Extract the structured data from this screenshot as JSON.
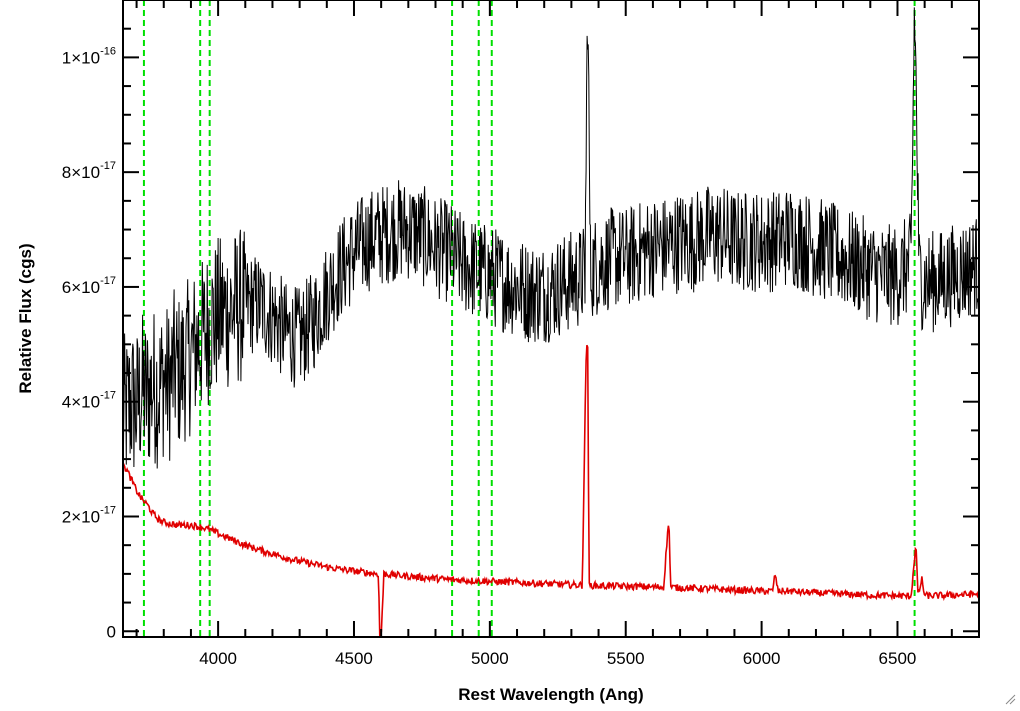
{
  "chart_data": {
    "type": "line",
    "title": "",
    "xlabel": "Rest Wavelength (Ang)",
    "ylabel": "Relative Flux (cgs)",
    "xlim": [
      3650,
      6800
    ],
    "ylim": [
      -1e-18,
      1.1e-16
    ],
    "grid": false,
    "x_ticks": [
      4000,
      4500,
      5000,
      5500,
      6000,
      6500
    ],
    "x_tick_labels": [
      "4000",
      "4500",
      "5000",
      "5500",
      "6000",
      "6500"
    ],
    "y_ticks": [
      0,
      2e-17,
      4e-17,
      6e-17,
      8e-17,
      1e-16
    ],
    "y_tick_labels": [
      {
        "text": "0",
        "mantissa": "0",
        "times": "",
        "base": "",
        "exponent": ""
      },
      {
        "text": "2×10-17",
        "mantissa": "2",
        "times": "×",
        "base": "10",
        "exponent": "-17"
      },
      {
        "text": "4×10-17",
        "mantissa": "4",
        "times": "×",
        "base": "10",
        "exponent": "-17"
      },
      {
        "text": "6×10-17",
        "mantissa": "6",
        "times": "×",
        "base": "10",
        "exponent": "-17"
      },
      {
        "text": "8×10-17",
        "mantissa": "8",
        "times": "×",
        "base": "10",
        "exponent": "-17"
      },
      {
        "text": "1×10-16",
        "mantissa": "1",
        "times": "×",
        "base": "10",
        "exponent": "-16"
      }
    ],
    "vertical_markers": {
      "color": "#00e000",
      "style": "dashed",
      "x": [
        3727,
        3934,
        3969,
        4861,
        4959,
        5007,
        6563
      ]
    },
    "series": [
      {
        "color": "#000000",
        "description_of_shape": "noisy observed spectrum",
        "x": [
          3660,
          3680,
          3700,
          3720,
          3740,
          3760,
          3780,
          3800,
          3820,
          3840,
          3860,
          3880,
          3900,
          3920,
          3940,
          3960,
          3980,
          4000,
          4050,
          4100,
          4150,
          4200,
          4250,
          4300,
          4350,
          4400,
          4450,
          4500,
          4550,
          4600,
          4650,
          4700,
          4750,
          4800,
          4850,
          4900,
          4950,
          5000,
          5050,
          5100,
          5150,
          5200,
          5250,
          5300,
          5350,
          5360,
          5370,
          5400,
          5450,
          5500,
          5550,
          5600,
          5650,
          5700,
          5750,
          5800,
          5850,
          5900,
          5950,
          6000,
          6050,
          6100,
          6150,
          6200,
          6250,
          6300,
          6350,
          6400,
          6450,
          6500,
          6550,
          6563,
          6580,
          6600,
          6650,
          6700,
          6750,
          6800
        ],
        "y": [
          3.8e-17,
          4e-17,
          3.9e-17,
          4.2e-17,
          4.1e-17,
          4.3e-17,
          4.2e-17,
          4.4e-17,
          4.3e-17,
          4.6e-17,
          4.5e-17,
          4.7e-17,
          4.8e-17,
          5e-17,
          5.1e-17,
          5.3e-17,
          5.4e-17,
          5.5e-17,
          5.6e-17,
          5.7e-17,
          5.7e-17,
          5.5e-17,
          5.2e-17,
          5.1e-17,
          5.4e-17,
          5.9e-17,
          6.3e-17,
          6.6e-17,
          6.8e-17,
          6.9e-17,
          7e-17,
          7e-17,
          6.9e-17,
          6.7e-17,
          6.6e-17,
          6.4e-17,
          6.3e-17,
          6.2e-17,
          6.1e-17,
          6e-17,
          5.9e-17,
          5.9e-17,
          6e-17,
          6.1e-17,
          6.2e-17,
          1.1e-16,
          6.3e-17,
          6.4e-17,
          6.5e-17,
          6.5e-17,
          6.6e-17,
          6.7e-17,
          6.7e-17,
          6.8e-17,
          6.8e-17,
          6.9e-17,
          6.9e-17,
          6.8e-17,
          6.8e-17,
          6.8e-17,
          6.8e-17,
          6.9e-17,
          6.8e-17,
          6.7e-17,
          6.6e-17,
          6.5e-17,
          6.4e-17,
          6.3e-17,
          6.2e-17,
          6.2e-17,
          6.4e-17,
          1.1e-16,
          6.2e-17,
          6.1e-17,
          6.1e-17,
          6.2e-17,
          6.3e-17,
          6.4e-17
        ]
      },
      {
        "color": "#e00000",
        "description_of_shape": "model / continuum spectrum with emission lines",
        "x": [
          3660,
          3680,
          3700,
          3720,
          3740,
          3760,
          3780,
          3800,
          3850,
          3900,
          3950,
          3980,
          4000,
          4050,
          4100,
          4150,
          4200,
          4250,
          4300,
          4350,
          4400,
          4450,
          4500,
          4550,
          4590,
          4595,
          4600,
          4610,
          4650,
          4700,
          4750,
          4800,
          4850,
          4900,
          4950,
          5000,
          5050,
          5100,
          5150,
          5200,
          5250,
          5300,
          5340,
          5355,
          5360,
          5365,
          5380,
          5400,
          5450,
          5500,
          5550,
          5600,
          5640,
          5655,
          5660,
          5665,
          5680,
          5700,
          5750,
          5800,
          5850,
          5900,
          5950,
          6000,
          6040,
          6050,
          6060,
          6100,
          6150,
          6200,
          6250,
          6300,
          6350,
          6400,
          6450,
          6500,
          6550,
          6565,
          6570,
          6575,
          6590,
          6600,
          6650,
          6700,
          6750,
          6800
        ],
        "y": [
          2.85e-17,
          2.65e-17,
          2.45e-17,
          2.3e-17,
          2.2e-17,
          2.05e-17,
          1.95e-17,
          1.9e-17,
          1.85e-17,
          1.85e-17,
          1.8e-17,
          1.75e-17,
          1.7e-17,
          1.6e-17,
          1.5e-17,
          1.42e-17,
          1.35e-17,
          1.28e-17,
          1.22e-17,
          1.17e-17,
          1.12e-17,
          1.08e-17,
          1.05e-17,
          1.02e-17,
          1e-17,
          -1e-18,
          -1e-18,
          1e-17,
          9.8e-18,
          9.6e-18,
          9.4e-18,
          9.2e-18,
          9e-18,
          8.9e-18,
          8.8e-18,
          8.7e-18,
          8.6e-18,
          8.5e-18,
          8.4e-18,
          8.3e-18,
          8.2e-18,
          8.1e-18,
          8e-18,
          5e-17,
          5e-17,
          8e-18,
          8e-18,
          7.9e-18,
          7.9e-18,
          7.8e-18,
          7.8e-18,
          7.7e-18,
          7.7e-18,
          1.8e-17,
          1.8e-17,
          7.7e-18,
          7.6e-18,
          7.6e-18,
          7.5e-18,
          7.4e-18,
          7.3e-18,
          7.2e-18,
          7.1e-18,
          7e-18,
          7e-18,
          1e-17,
          7e-18,
          7e-18,
          6.8e-18,
          6.7e-18,
          6.6e-18,
          6.5e-18,
          6.4e-18,
          6.3e-18,
          6.2e-18,
          6.2e-18,
          6.1e-18,
          1.4e-17,
          1.4e-17,
          6.2e-18,
          9e-18,
          6.2e-18,
          6.2e-18,
          6.3e-18,
          6.4e-18,
          6.5e-18
        ]
      }
    ]
  }
}
